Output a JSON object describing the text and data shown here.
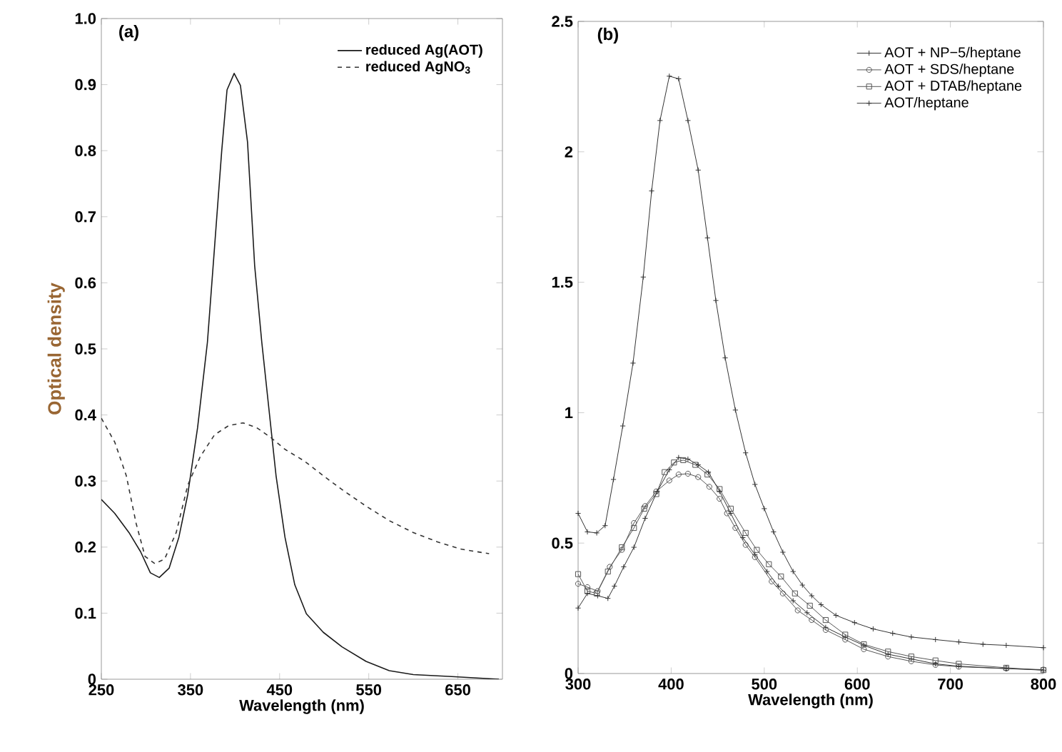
{
  "chart_data": [
    {
      "type": "line",
      "title": "(a)",
      "xlabel": "Wavelength (nm)",
      "ylabel": "Optical density",
      "xlim": [
        250,
        700
      ],
      "ylim": [
        0,
        1.0
      ],
      "xticks": [
        250,
        350,
        450,
        550,
        650
      ],
      "yticks": [
        0,
        0.1,
        0.2,
        0.3,
        0.4,
        0.5,
        0.6,
        0.7,
        0.8,
        0.9,
        {
          "value": 1,
          "label": "1.0"
        }
      ],
      "legend": "top right",
      "grid": false,
      "marker": "none",
      "series": [
        {
          "name": "reduced Ag(AOT)",
          "color": "#1a1a1a",
          "line_style": "solid",
          "x": [
            250,
            265,
            281,
            294,
            305,
            315,
            326,
            337,
            347,
            358,
            369,
            377,
            385,
            391,
            399,
            406,
            414,
            422,
            430,
            438,
            446,
            456,
            467,
            480,
            499,
            520,
            547,
            573,
            600,
            643,
            696
          ],
          "values": [
            0.272,
            0.251,
            0.222,
            0.193,
            0.161,
            0.154,
            0.168,
            0.215,
            0.28,
            0.381,
            0.51,
            0.654,
            0.799,
            0.892,
            0.917,
            0.899,
            0.813,
            0.626,
            0.51,
            0.409,
            0.308,
            0.215,
            0.143,
            0.099,
            0.071,
            0.049,
            0.027,
            0.013,
            0.007,
            0.004,
            0
          ]
        },
        {
          "name": "reduced AgNO$_{3}$",
          "color": "#333333",
          "line_style": "dashed",
          "x": [
            250,
            265,
            278,
            289,
            299,
            310,
            321,
            334,
            347,
            361,
            377,
            393,
            409,
            424,
            440,
            456,
            478,
            499,
            520,
            547,
            573,
            600,
            627,
            653,
            685
          ],
          "values": [
            0.395,
            0.359,
            0.308,
            0.236,
            0.186,
            0.175,
            0.182,
            0.222,
            0.294,
            0.337,
            0.37,
            0.384,
            0.388,
            0.381,
            0.366,
            0.348,
            0.33,
            0.308,
            0.287,
            0.262,
            0.24,
            0.222,
            0.208,
            0.197,
            0.19
          ]
        }
      ]
    },
    {
      "type": "line",
      "title": "(b)",
      "xlabel": "Wavelength (nm)",
      "xlim": [
        300,
        800
      ],
      "ylim": [
        0,
        2.5
      ],
      "xticks": [
        300,
        400,
        500,
        600,
        700,
        800
      ],
      "yticks": [
        0,
        0.5,
        1,
        1.5,
        2,
        2.5
      ],
      "legend": "top right",
      "grid": false,
      "series": [
        {
          "name": "AOT + NP−5/heptane",
          "color": "#333333",
          "marker": "cross",
          "line_style": "solid",
          "x": [
            300,
            310,
            320,
            329,
            338,
            348,
            359,
            370,
            379,
            388,
            398,
            408,
            418,
            429,
            439,
            448,
            458,
            469,
            480,
            490,
            500,
            510,
            520,
            531,
            541,
            551,
            561,
            577,
            597,
            617,
            638,
            658,
            684,
            709,
            735,
            760,
            800
          ],
          "values": [
            0.614,
            0.543,
            0.539,
            0.567,
            0.744,
            0.949,
            1.19,
            1.52,
            1.85,
            2.12,
            2.29,
            2.28,
            2.12,
            1.93,
            1.67,
            1.43,
            1.21,
            1.01,
            0.846,
            0.725,
            0.632,
            0.543,
            0.465,
            0.391,
            0.339,
            0.298,
            0.264,
            0.223,
            0.195,
            0.171,
            0.154,
            0.14,
            0.13,
            0.121,
            0.112,
            0.108,
            0.099
          ]
        },
        {
          "name": "AOT + SDS/heptane",
          "color": "#555555",
          "marker": "circle",
          "line_style": "solid",
          "x": [
            300,
            310,
            321,
            334,
            347,
            360,
            372,
            384,
            398,
            408,
            418,
            429,
            441,
            452,
            460,
            469,
            480,
            490,
            508,
            520,
            536,
            551,
            566,
            587,
            607,
            633,
            658,
            684,
            709,
            760,
            800
          ],
          "values": [
            0.344,
            0.331,
            0.316,
            0.409,
            0.474,
            0.577,
            0.642,
            0.698,
            0.74,
            0.763,
            0.766,
            0.753,
            0.716,
            0.67,
            0.614,
            0.558,
            0.493,
            0.446,
            0.353,
            0.307,
            0.242,
            0.205,
            0.167,
            0.13,
            0.093,
            0.065,
            0.047,
            0.033,
            0.026,
            0.019,
            0.015
          ]
        },
        {
          "name": "AOT + DTAB/heptane",
          "color": "#555555",
          "marker": "square",
          "line_style": "solid",
          "x": [
            300,
            310,
            320,
            332,
            347,
            360,
            371,
            384,
            393,
            403,
            413,
            426,
            439,
            452,
            464,
            480,
            492,
            505,
            518,
            533,
            549,
            566,
            587,
            607,
            633,
            658,
            684,
            709,
            760,
            800
          ],
          "values": [
            0.381,
            0.316,
            0.307,
            0.391,
            0.484,
            0.558,
            0.632,
            0.688,
            0.772,
            0.809,
            0.818,
            0.8,
            0.763,
            0.707,
            0.632,
            0.539,
            0.474,
            0.419,
            0.372,
            0.307,
            0.26,
            0.205,
            0.149,
            0.112,
            0.084,
            0.065,
            0.05,
            0.037,
            0.022,
            0.013
          ]
        },
        {
          "name": "AOT/heptane",
          "color": "#333333",
          "marker": "cross",
          "line_style": "solid",
          "x": [
            300,
            310,
            321,
            332,
            339,
            349,
            360,
            372,
            385,
            398,
            408,
            418,
            429,
            440,
            452,
            464,
            477,
            490,
            503,
            515,
            531,
            546,
            566,
            587,
            607,
            633,
            658,
            684,
            709,
            760,
            800
          ],
          "values": [
            0.251,
            0.307,
            0.298,
            0.288,
            0.335,
            0.409,
            0.484,
            0.595,
            0.698,
            0.781,
            0.828,
            0.822,
            0.8,
            0.772,
            0.698,
            0.614,
            0.521,
            0.456,
            0.391,
            0.335,
            0.279,
            0.233,
            0.177,
            0.14,
            0.108,
            0.074,
            0.056,
            0.037,
            0.028,
            0.019,
            0.013
          ]
        }
      ]
    }
  ]
}
